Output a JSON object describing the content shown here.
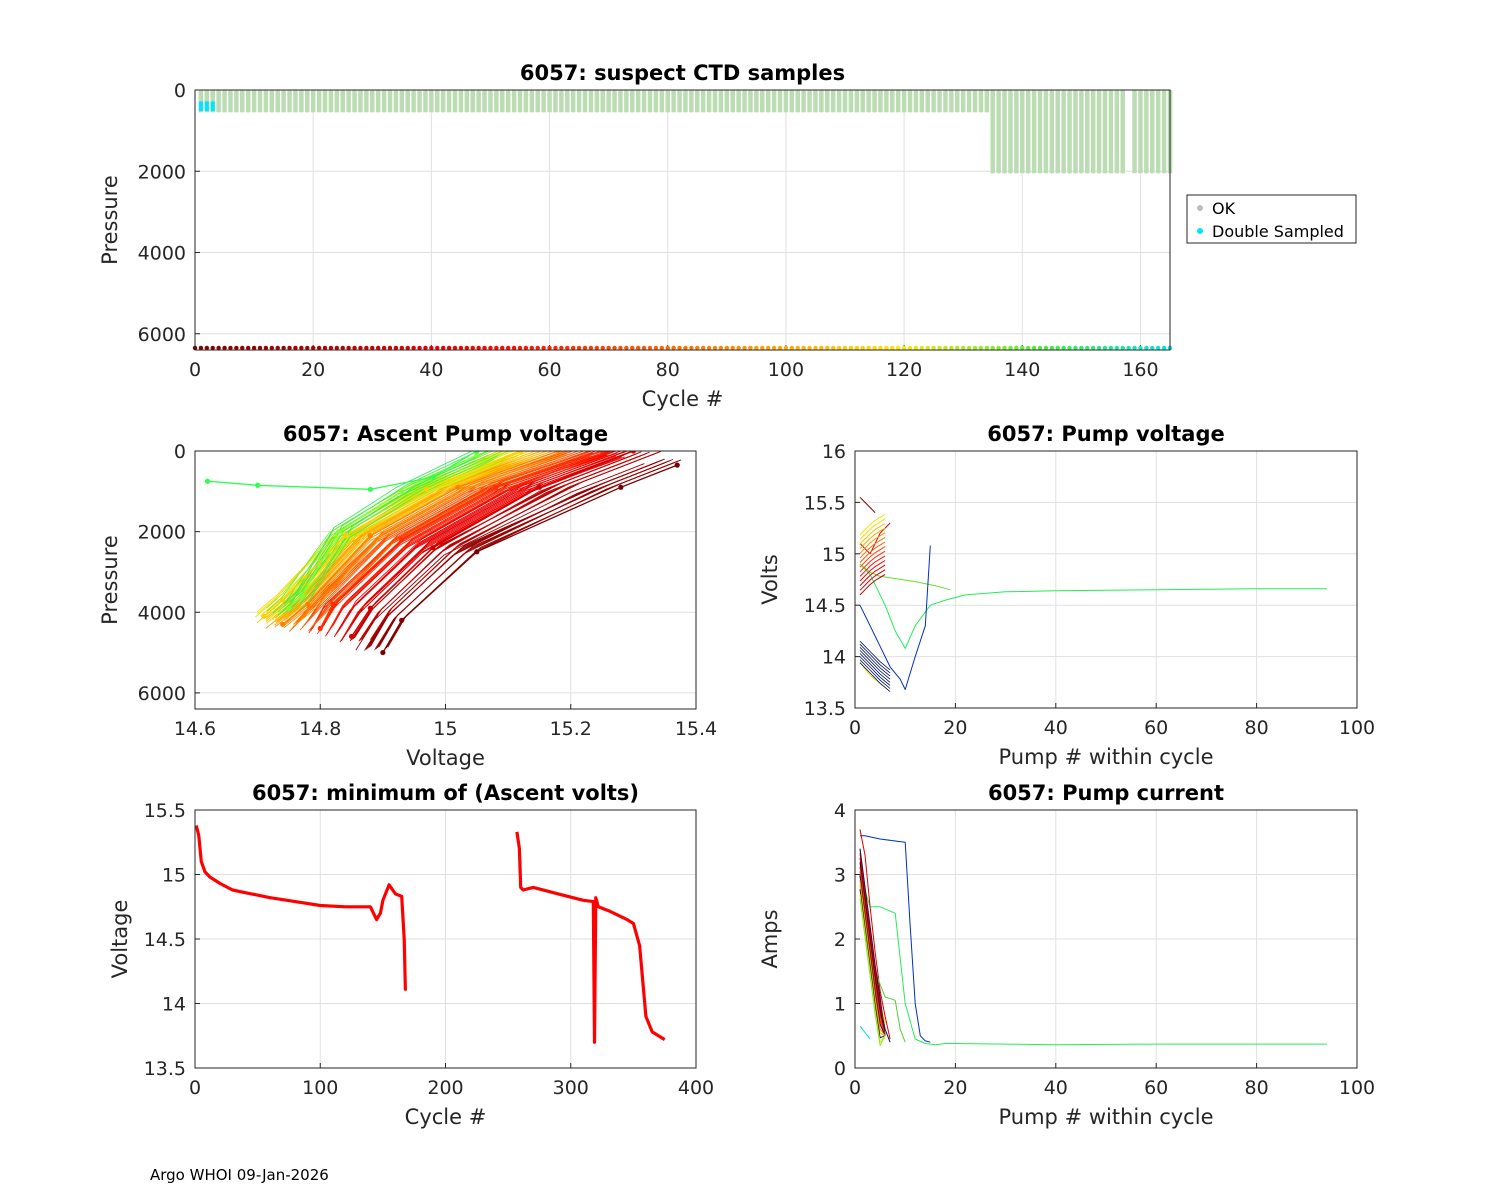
{
  "footer": "Argo WHOI 09-Jan-2026",
  "colors": {
    "ok": "#bcdcb4",
    "double_sampled": "#00e5ff",
    "grid": "#e0e0e0",
    "axis": "#262626",
    "minvolt": "#ff0000"
  },
  "chart_data": [
    {
      "id": "suspect",
      "type": "scatter",
      "title": "6057: suspect CTD samples",
      "xlabel": "Cycle #",
      "ylabel": "Pressure",
      "xlim": [
        0,
        165
      ],
      "ylim": [
        0,
        6400
      ],
      "y_reversed": true,
      "xticks": [
        0,
        20,
        40,
        60,
        80,
        100,
        120,
        140,
        160
      ],
      "yticks": [
        0,
        2000,
        4000,
        6000
      ],
      "grid": true,
      "legend": {
        "placement": "outside-right",
        "entries": [
          {
            "label": "OK",
            "color": "#bcbcbc"
          },
          {
            "label": "Double Sampled",
            "color": "#00e5ff"
          }
        ]
      },
      "series": [
        {
          "name": "OK",
          "cycle_range": [
            1,
            165
          ],
          "max_pressure_early": 550,
          "max_pressure_late": 2050,
          "late_from_cycle": 135
        },
        {
          "name": "Double Sampled",
          "cycles": [
            1,
            2,
            3
          ],
          "pressure_range": [
            280,
            520
          ]
        },
        {
          "name": "cycle markers",
          "pressure": 6350,
          "color_ramp": "darkred-red-orange-yellow-green-cyan"
        }
      ]
    },
    {
      "id": "ascent",
      "type": "line",
      "title": "6057: Ascent Pump voltage",
      "xlabel": "Voltage",
      "ylabel": "Pressure",
      "xlim": [
        14.6,
        15.4
      ],
      "ylim": [
        0,
        6400
      ],
      "y_reversed": true,
      "xticks": [
        14.6,
        14.8,
        15,
        15.2,
        15.4
      ],
      "yticks": [
        0,
        2000,
        4000,
        6000
      ],
      "grid": true,
      "note": "one profile per cycle, colored by cycle (darkred early to green late)",
      "representative_profiles": [
        {
          "color": "#7a0000",
          "points": [
            [
              15.37,
              350
            ],
            [
              15.28,
              900
            ],
            [
              15.05,
              2500
            ],
            [
              14.93,
              4200
            ],
            [
              14.9,
              5000
            ]
          ]
        },
        {
          "color": "#d40000",
          "points": [
            [
              15.3,
              0
            ],
            [
              15.15,
              900
            ],
            [
              14.98,
              2400
            ],
            [
              14.88,
              3900
            ],
            [
              14.85,
              4600
            ]
          ]
        },
        {
          "color": "#ff3000",
          "points": [
            [
              15.25,
              0
            ],
            [
              15.08,
              900
            ],
            [
              14.93,
              2200
            ],
            [
              14.82,
              3800
            ],
            [
              14.8,
              4400
            ]
          ]
        },
        {
          "color": "#ff8000",
          "points": [
            [
              15.18,
              0
            ],
            [
              15.02,
              900
            ],
            [
              14.88,
              2100
            ],
            [
              14.78,
              3800
            ],
            [
              14.74,
              4300
            ]
          ]
        },
        {
          "color": "#ffd000",
          "points": [
            [
              15.12,
              0
            ],
            [
              14.97,
              950
            ],
            [
              14.84,
              2100
            ],
            [
              14.74,
              3700
            ],
            [
              14.71,
              4100
            ]
          ]
        },
        {
          "color": "#80ff30",
          "points": [
            [
              15.05,
              100
            ],
            [
              14.93,
              1000
            ],
            [
              14.83,
              2000
            ],
            [
              14.77,
              3600
            ],
            [
              14.75,
              3900
            ]
          ]
        },
        {
          "color": "#30ff50",
          "points": [
            [
              14.62,
              750
            ],
            [
              14.7,
              850
            ],
            [
              14.88,
              950
            ],
            [
              14.98,
              650
            ],
            [
              15.05,
              0
            ]
          ]
        }
      ]
    },
    {
      "id": "pumpvolt",
      "type": "line",
      "title": "6057: Pump voltage",
      "xlabel": "Pump # within cycle",
      "ylabel": "Volts",
      "xlim": [
        0,
        100
      ],
      "ylim": [
        13.5,
        16
      ],
      "xticks": [
        0,
        20,
        40,
        60,
        80,
        100
      ],
      "yticks": [
        13.5,
        14,
        14.5,
        15,
        15.5,
        16
      ],
      "grid": true,
      "series": [
        {
          "name": "late long cycle",
          "color": "#22ee55",
          "x": [
            1,
            3,
            6,
            8,
            10,
            12,
            15,
            18,
            22,
            30,
            40,
            60,
            80,
            94
          ],
          "y": [
            14.9,
            14.8,
            14.5,
            14.25,
            14.08,
            14.3,
            14.5,
            14.55,
            14.6,
            14.63,
            14.64,
            14.65,
            14.66,
            14.66
          ]
        },
        {
          "name": "green cluster",
          "color": "#66dd33",
          "x": [
            1,
            3,
            5,
            8,
            12,
            16,
            19
          ],
          "y": [
            14.9,
            14.82,
            14.78,
            14.76,
            14.73,
            14.69,
            14.65
          ]
        },
        {
          "name": "blue cycle",
          "color": "#0030c0",
          "x": [
            1,
            3,
            5,
            7,
            9,
            10,
            12,
            14,
            15
          ],
          "y": [
            14.5,
            14.3,
            14.1,
            13.9,
            13.78,
            13.68,
            14.0,
            14.3,
            15.08
          ]
        },
        {
          "name": "red early",
          "color": "#e00000",
          "x": [
            1,
            2,
            3,
            4,
            5,
            6,
            7
          ],
          "y": [
            15.1,
            15.05,
            15.0,
            15.1,
            15.2,
            15.25,
            15.3
          ]
        },
        {
          "name": "darkred start",
          "color": "#800000",
          "x": [
            1,
            2,
            3,
            4
          ],
          "y": [
            15.55,
            15.5,
            15.45,
            15.4
          ]
        },
        {
          "name": "yellow low",
          "color": "#e8e000",
          "x": [
            1,
            2,
            3,
            4,
            5,
            6
          ],
          "y": [
            13.95,
            13.88,
            13.82,
            13.78,
            13.74,
            13.7
          ]
        }
      ]
    },
    {
      "id": "minvolt",
      "type": "line",
      "title": "6057: minimum of (Ascent volts)",
      "xlabel": "Cycle #",
      "ylabel": "Voltage",
      "xlim": [
        0,
        400
      ],
      "ylim": [
        13.5,
        15.5
      ],
      "xticks": [
        0,
        100,
        200,
        300,
        400
      ],
      "yticks": [
        13.5,
        14,
        14.5,
        15,
        15.5
      ],
      "grid": true,
      "series": [
        {
          "name": "segment 1",
          "color": "#ff0000",
          "x": [
            1,
            3,
            5,
            8,
            12,
            20,
            30,
            45,
            60,
            80,
            100,
            120,
            140,
            145,
            148,
            150,
            155,
            160,
            165,
            167,
            168
          ],
          "y": [
            15.38,
            15.3,
            15.1,
            15.02,
            14.98,
            14.93,
            14.88,
            14.85,
            14.82,
            14.79,
            14.76,
            14.75,
            14.75,
            14.65,
            14.7,
            14.8,
            14.92,
            14.85,
            14.83,
            14.5,
            14.1
          ]
        },
        {
          "name": "segment 2",
          "color": "#ff0000",
          "x": [
            257,
            259,
            260,
            262,
            270,
            290,
            310,
            318,
            319,
            320,
            322,
            330,
            345,
            350,
            355,
            360,
            365,
            375
          ],
          "y": [
            15.33,
            15.2,
            14.9,
            14.88,
            14.9,
            14.85,
            14.8,
            14.79,
            13.7,
            14.82,
            14.75,
            14.72,
            14.65,
            14.62,
            14.45,
            13.9,
            13.78,
            13.72
          ]
        }
      ]
    },
    {
      "id": "pumpcur",
      "type": "line",
      "title": "6057: Pump current",
      "xlabel": "Pump # within cycle",
      "ylabel": "Amps",
      "xlim": [
        0,
        100
      ],
      "ylim": [
        0,
        4
      ],
      "xticks": [
        0,
        20,
        40,
        60,
        80,
        100
      ],
      "yticks": [
        0,
        1,
        2,
        3,
        4
      ],
      "grid": true,
      "series": [
        {
          "name": "late long cycle",
          "color": "#22ee55",
          "x": [
            1,
            3,
            5,
            8,
            10,
            12,
            14,
            16,
            18,
            20,
            30,
            40,
            60,
            80,
            94
          ],
          "y": [
            3.0,
            2.5,
            2.5,
            2.4,
            1.0,
            0.45,
            0.38,
            0.36,
            0.38,
            0.38,
            0.37,
            0.36,
            0.37,
            0.37,
            0.37
          ]
        },
        {
          "name": "blue cycle",
          "color": "#0030c0",
          "x": [
            1,
            2,
            5,
            8,
            10,
            11,
            12,
            13,
            14,
            15
          ],
          "y": [
            3.6,
            3.6,
            3.55,
            3.52,
            3.5,
            2.2,
            1.0,
            0.5,
            0.42,
            0.4
          ]
        },
        {
          "name": "red cycle",
          "color": "#e00000",
          "x": [
            1,
            2,
            3,
            4,
            5,
            6,
            7
          ],
          "y": [
            3.7,
            3.3,
            2.5,
            1.8,
            1.2,
            0.8,
            0.45
          ]
        },
        {
          "name": "green cycle",
          "color": "#55cc33",
          "x": [
            1,
            2,
            4,
            6,
            8,
            9,
            10
          ],
          "y": [
            3.4,
            2.8,
            1.5,
            1.1,
            1.05,
            0.6,
            0.4
          ]
        },
        {
          "name": "darkblue cycle",
          "color": "#001050",
          "x": [
            1,
            2,
            3,
            4,
            5,
            6,
            7
          ],
          "y": [
            3.0,
            2.6,
            2.0,
            1.5,
            1.0,
            0.6,
            0.4
          ]
        },
        {
          "name": "yellow cycle",
          "color": "#e8e000",
          "x": [
            1,
            2,
            3,
            4,
            5,
            6
          ],
          "y": [
            2.8,
            2.3,
            1.8,
            1.3,
            1.0,
            0.7
          ]
        },
        {
          "name": "cyan start",
          "color": "#00dddd",
          "x": [
            1,
            2,
            3
          ],
          "y": [
            0.65,
            0.55,
            0.45
          ]
        }
      ]
    }
  ]
}
